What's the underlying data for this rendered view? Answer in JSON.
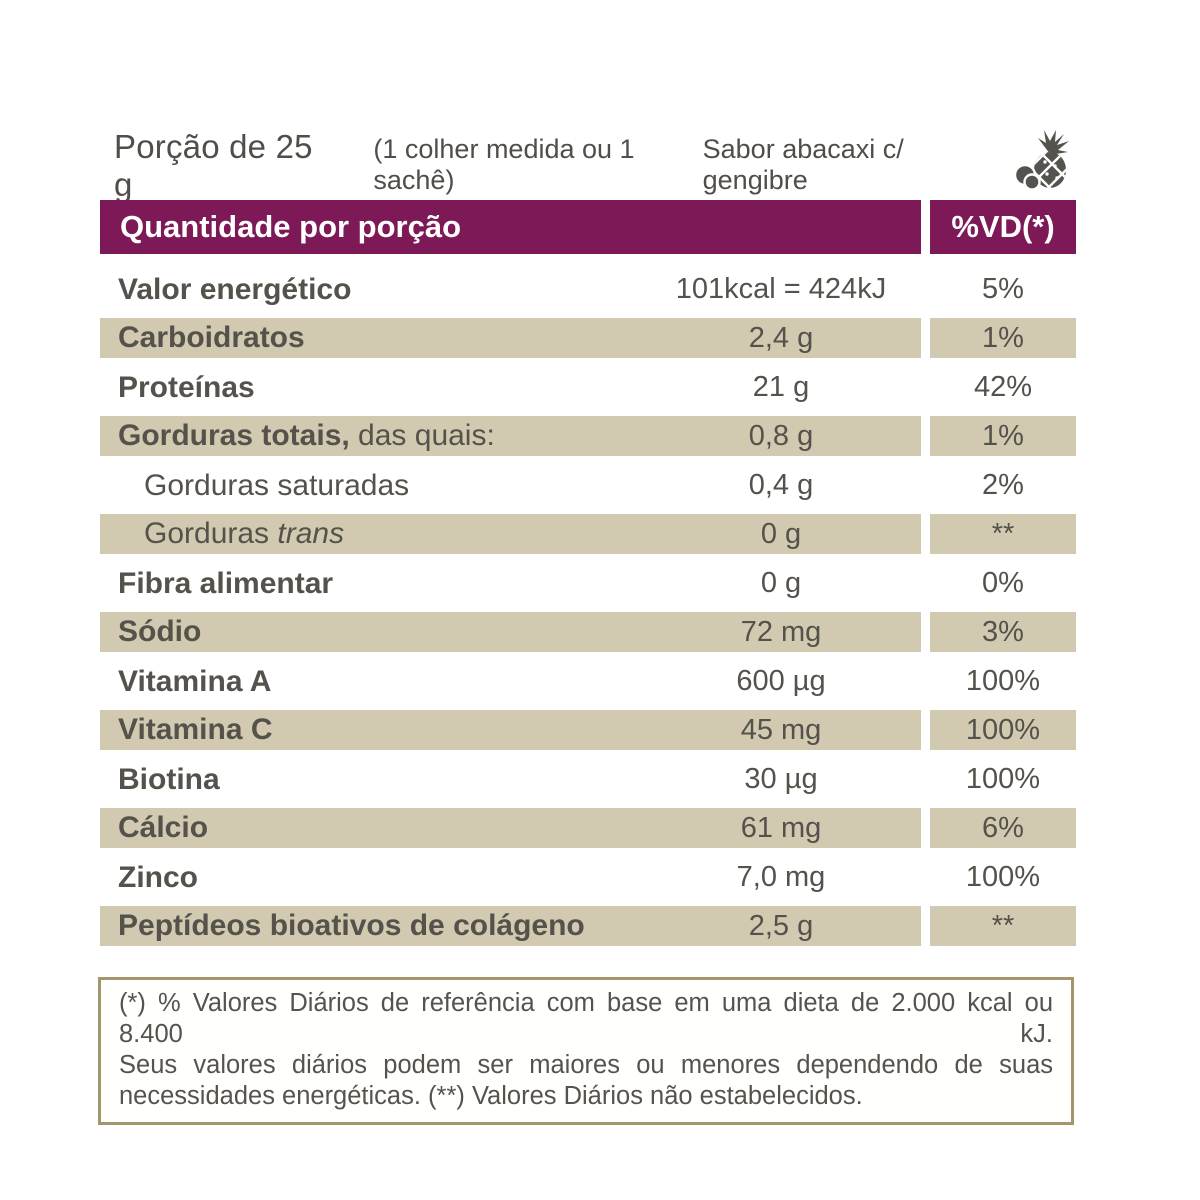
{
  "header": {
    "portion": "Porção de 25 g",
    "measure_note": "(1 colher medida ou 1 sachê)",
    "flavor": "Sabor abacaxi c/ gengibre",
    "flavor_icon": "pineapple-ginger-icon"
  },
  "table": {
    "header": {
      "quantity_label": "Quantidade por porção",
      "dv_label": "%VD(*)"
    },
    "rows": [
      {
        "parts": [
          {
            "t": "Valor energético",
            "b": true
          }
        ],
        "indent": false,
        "value": "101kcal = 424kJ",
        "dv": "5%",
        "shaded": false
      },
      {
        "parts": [
          {
            "t": "Carboidratos",
            "b": true
          }
        ],
        "indent": false,
        "value": "2,4 g",
        "dv": "1%",
        "shaded": true
      },
      {
        "parts": [
          {
            "t": "Proteínas",
            "b": true
          }
        ],
        "indent": false,
        "value": "21 g",
        "dv": "42%",
        "shaded": false
      },
      {
        "parts": [
          {
            "t": "Gorduras totais,",
            "b": true
          },
          {
            "t": " das quais:",
            "b": false
          }
        ],
        "indent": false,
        "value": "0,8 g",
        "dv": "1%",
        "shaded": true
      },
      {
        "parts": [
          {
            "t": "Gorduras saturadas",
            "b": false
          }
        ],
        "indent": true,
        "value": "0,4 g",
        "dv": "2%",
        "shaded": false
      },
      {
        "parts": [
          {
            "t": "Gorduras ",
            "b": false
          },
          {
            "t": "trans",
            "b": false,
            "i": true
          }
        ],
        "indent": true,
        "value": "0 g",
        "dv": "**",
        "shaded": true
      },
      {
        "parts": [
          {
            "t": "Fibra alimentar",
            "b": true
          }
        ],
        "indent": false,
        "value": "0 g",
        "dv": "0%",
        "shaded": false
      },
      {
        "parts": [
          {
            "t": "Sódio",
            "b": true
          }
        ],
        "indent": false,
        "value": "72 mg",
        "dv": "3%",
        "shaded": true
      },
      {
        "parts": [
          {
            "t": "Vitamina A",
            "b": true
          }
        ],
        "indent": false,
        "value": "600 µg",
        "dv": "100%",
        "shaded": false
      },
      {
        "parts": [
          {
            "t": "Vitamina C",
            "b": true
          }
        ],
        "indent": false,
        "value": "45 mg",
        "dv": "100%",
        "shaded": true
      },
      {
        "parts": [
          {
            "t": "Biotina",
            "b": true
          }
        ],
        "indent": false,
        "value": "30 µg",
        "dv": "100%",
        "shaded": false
      },
      {
        "parts": [
          {
            "t": "Cálcio",
            "b": true
          }
        ],
        "indent": false,
        "value": "61 mg",
        "dv": "6%",
        "shaded": true
      },
      {
        "parts": [
          {
            "t": "Zinco",
            "b": true
          }
        ],
        "indent": false,
        "value": "7,0 mg",
        "dv": "100%",
        "shaded": false
      },
      {
        "parts": [
          {
            "t": "Peptídeos bioativos de colágeno",
            "b": true
          }
        ],
        "indent": false,
        "value": "2,5 g",
        "dv": "**",
        "shaded": true
      }
    ]
  },
  "footnote": {
    "lines": [
      "(*) % Valores Diários de referência com base em uma dieta de 2.000 kcal ou 8.400 kJ.",
      "Seus valores diários podem ser maiores ou menores dependendo de suas",
      "necessidades energéticas. (**) Valores Diários não estabelecidos."
    ]
  },
  "colors": {
    "accent_purple": "#7d1956",
    "row_beige": "#d1c9b0",
    "text_gray": "#55524c",
    "footnote_border": "#a4956c",
    "icon_gray": "#55534e"
  }
}
